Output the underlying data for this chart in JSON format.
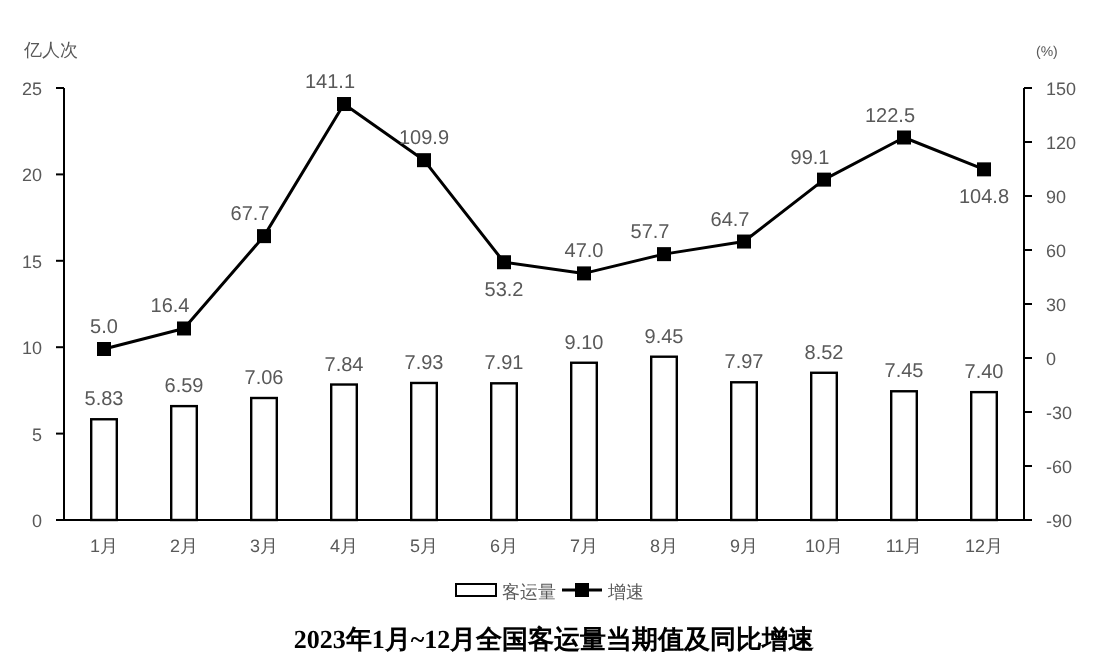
{
  "chart_data": {
    "type": "bar",
    "title": "2023年1月~12月全国客运量当期值及同比增速",
    "ylabel": "亿人次",
    "y2label": "(%)",
    "categories": [
      "1月",
      "2月",
      "3月",
      "4月",
      "5月",
      "6月",
      "7月",
      "8月",
      "9月",
      "10月",
      "11月",
      "12月"
    ],
    "series": [
      {
        "name": "客运量",
        "color": "#ffffff",
        "values": [
          5.83,
          6.59,
          7.06,
          7.84,
          7.93,
          7.91,
          9.1,
          9.45,
          7.97,
          8.52,
          7.45,
          7.4
        ],
        "value_labels": [
          "5.83",
          "6.59",
          "7.06",
          "7.84",
          "7.93",
          "7.91",
          "9.10",
          "9.45",
          "7.97",
          "8.52",
          "7.45",
          "7.40"
        ]
      },
      {
        "name": "增速",
        "type": "line",
        "axis": "y2",
        "color": "#000000",
        "values": [
          5.0,
          16.4,
          67.7,
          141.1,
          109.9,
          53.2,
          47.0,
          57.7,
          64.7,
          99.1,
          122.5,
          104.8
        ],
        "value_labels": [
          "5.0",
          "16.4",
          "67.7",
          "141.1",
          "109.9",
          "53.2",
          "47.0",
          "57.7",
          "64.7",
          "99.1",
          "122.5",
          "104.8"
        ]
      }
    ],
    "ylim": [
      0,
      25
    ],
    "yticks": [
      0,
      5,
      10,
      15,
      20,
      25
    ],
    "y2lim": [
      -90,
      150
    ],
    "y2ticks": [
      -90,
      -60,
      -30,
      0,
      30,
      60,
      90,
      120,
      150
    ],
    "legend": "bottom",
    "marker": "square",
    "grid": false
  }
}
